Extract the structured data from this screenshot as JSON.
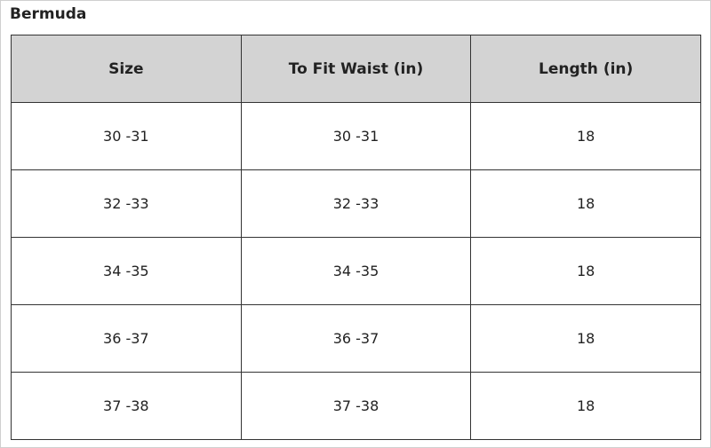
{
  "header": {
    "title": "Bermuda"
  },
  "table": {
    "columns": [
      "Size",
      "To Fit Waist (in)",
      "Length (in)"
    ],
    "rows": [
      [
        "30 -31",
        "30 -31",
        "18"
      ],
      [
        "32 -33",
        "32 -33",
        "18"
      ],
      [
        "34 -35",
        "34 -35",
        "18"
      ],
      [
        "36 -37",
        "36 -37",
        "18"
      ],
      [
        "37 -38",
        "37 -38",
        "18"
      ]
    ]
  }
}
